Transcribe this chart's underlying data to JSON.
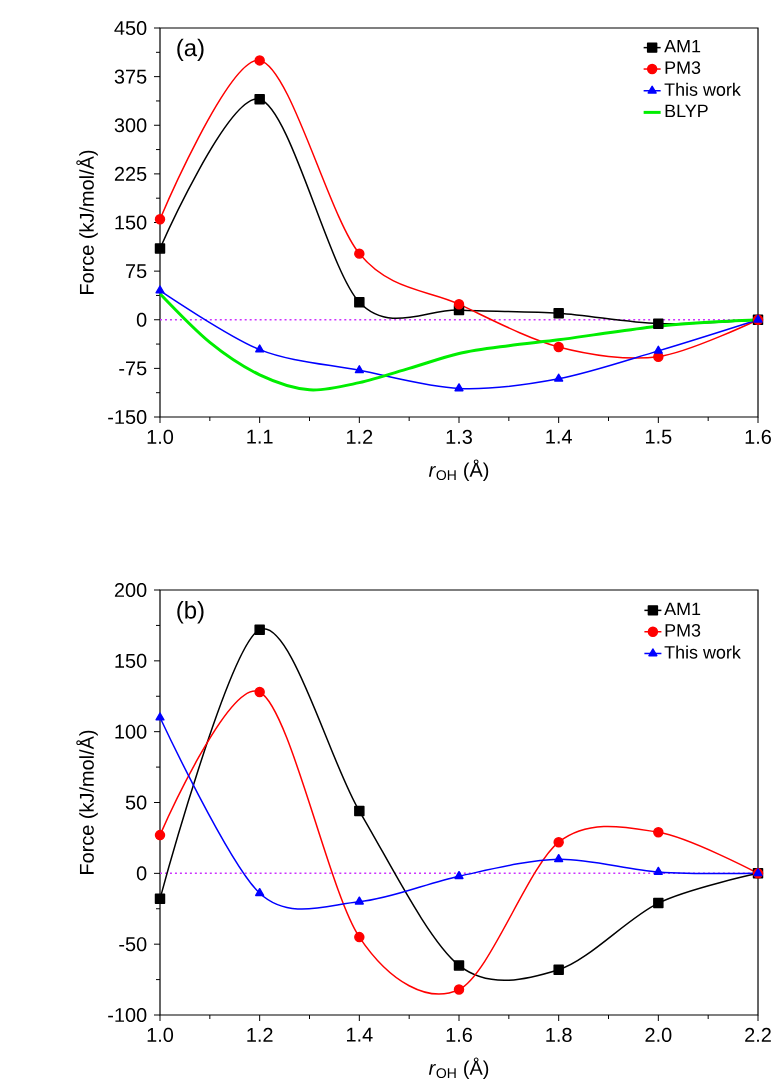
{
  "chart_data": [
    {
      "type": "line",
      "annotations": [
        "(a)"
      ],
      "xlabel": "*r*$_{OH}$ (Å)",
      "ylabel": "Force (kJ/mol/Å)",
      "x": [
        1.0,
        1.1,
        1.2,
        1.3,
        1.4,
        1.5,
        1.6
      ],
      "xlim": [
        1.0,
        1.6
      ],
      "xticks": [
        {
          "value": 1.0,
          "label": "1.0"
        },
        {
          "value": 1.1,
          "label": "1.1"
        },
        {
          "value": 1.2,
          "label": "1.2"
        },
        {
          "value": 1.3,
          "label": "1.3"
        },
        {
          "value": 1.4,
          "label": "1.4"
        },
        {
          "value": 1.5,
          "label": "1.5"
        },
        {
          "value": 1.6,
          "label": "1.6"
        }
      ],
      "ylim": [
        -150,
        450
      ],
      "yticks": [
        -150,
        -75,
        0,
        75,
        150,
        225,
        300,
        375,
        450
      ],
      "legend": "top right",
      "grid": false,
      "ref_lines": [
        {
          "axis": "y",
          "value": 0,
          "color": "#cc33ff",
          "line_style": "dotted"
        }
      ],
      "series": [
        {
          "name": "AM1",
          "color": "#000000",
          "marker": "square",
          "values": [
            110,
            340,
            27,
            15,
            10,
            -6,
            0
          ]
        },
        {
          "name": "PM3",
          "color": "#ff0000",
          "marker": "circle",
          "values": [
            155,
            400,
            102,
            24,
            -42,
            -57,
            0
          ]
        },
        {
          "name": "This work",
          "color": "#0000ff",
          "marker": "triangle",
          "values": [
            45,
            -46,
            -78,
            -106,
            -91,
            -48,
            0
          ]
        },
        {
          "name": "BLYP",
          "color": "#00ee00",
          "marker": "none",
          "x": [
            1.0,
            1.05,
            1.1,
            1.15,
            1.2,
            1.25,
            1.3,
            1.35,
            1.4,
            1.45,
            1.5,
            1.55,
            1.6
          ],
          "values": [
            40,
            -35,
            -85,
            -108,
            -97,
            -75,
            -52,
            -40,
            -31,
            -20,
            -10,
            -4,
            0
          ]
        }
      ]
    },
    {
      "type": "line",
      "annotations": [
        "(b)"
      ],
      "xlabel": "*r*$_{OH}$ (Å)",
      "ylabel": "Force (kJ/mol/Å)",
      "x": [
        1.0,
        1.2,
        1.4,
        1.6,
        1.8,
        2.0,
        2.2
      ],
      "xlim": [
        1.0,
        2.2
      ],
      "xticks": [
        {
          "value": 1.0,
          "label": "1.0"
        },
        {
          "value": 1.2,
          "label": "1.2"
        },
        {
          "value": 1.4,
          "label": "1.4"
        },
        {
          "value": 1.6,
          "label": "1.6"
        },
        {
          "value": 1.8,
          "label": "1.8"
        },
        {
          "value": 2.0,
          "label": "2.0"
        },
        {
          "value": 2.2,
          "label": "2.2"
        }
      ],
      "ylim": [
        -100,
        200
      ],
      "yticks": [
        -100,
        -50,
        0,
        50,
        100,
        150,
        200
      ],
      "legend": "top right",
      "grid": false,
      "ref_lines": [
        {
          "axis": "y",
          "value": 0,
          "color": "#cc33ff",
          "line_style": "dotted"
        }
      ],
      "series": [
        {
          "name": "AM1",
          "color": "#000000",
          "marker": "square",
          "values": [
            -18,
            172,
            44,
            -65,
            -68,
            -21,
            0
          ]
        },
        {
          "name": "PM3",
          "color": "#ff0000",
          "marker": "circle",
          "values": [
            27,
            128,
            -45,
            -82,
            22,
            29,
            0
          ]
        },
        {
          "name": "This work",
          "color": "#0000ff",
          "marker": "triangle",
          "values": [
            110,
            -14,
            -20,
            -2,
            10,
            1,
            0
          ]
        }
      ]
    }
  ]
}
